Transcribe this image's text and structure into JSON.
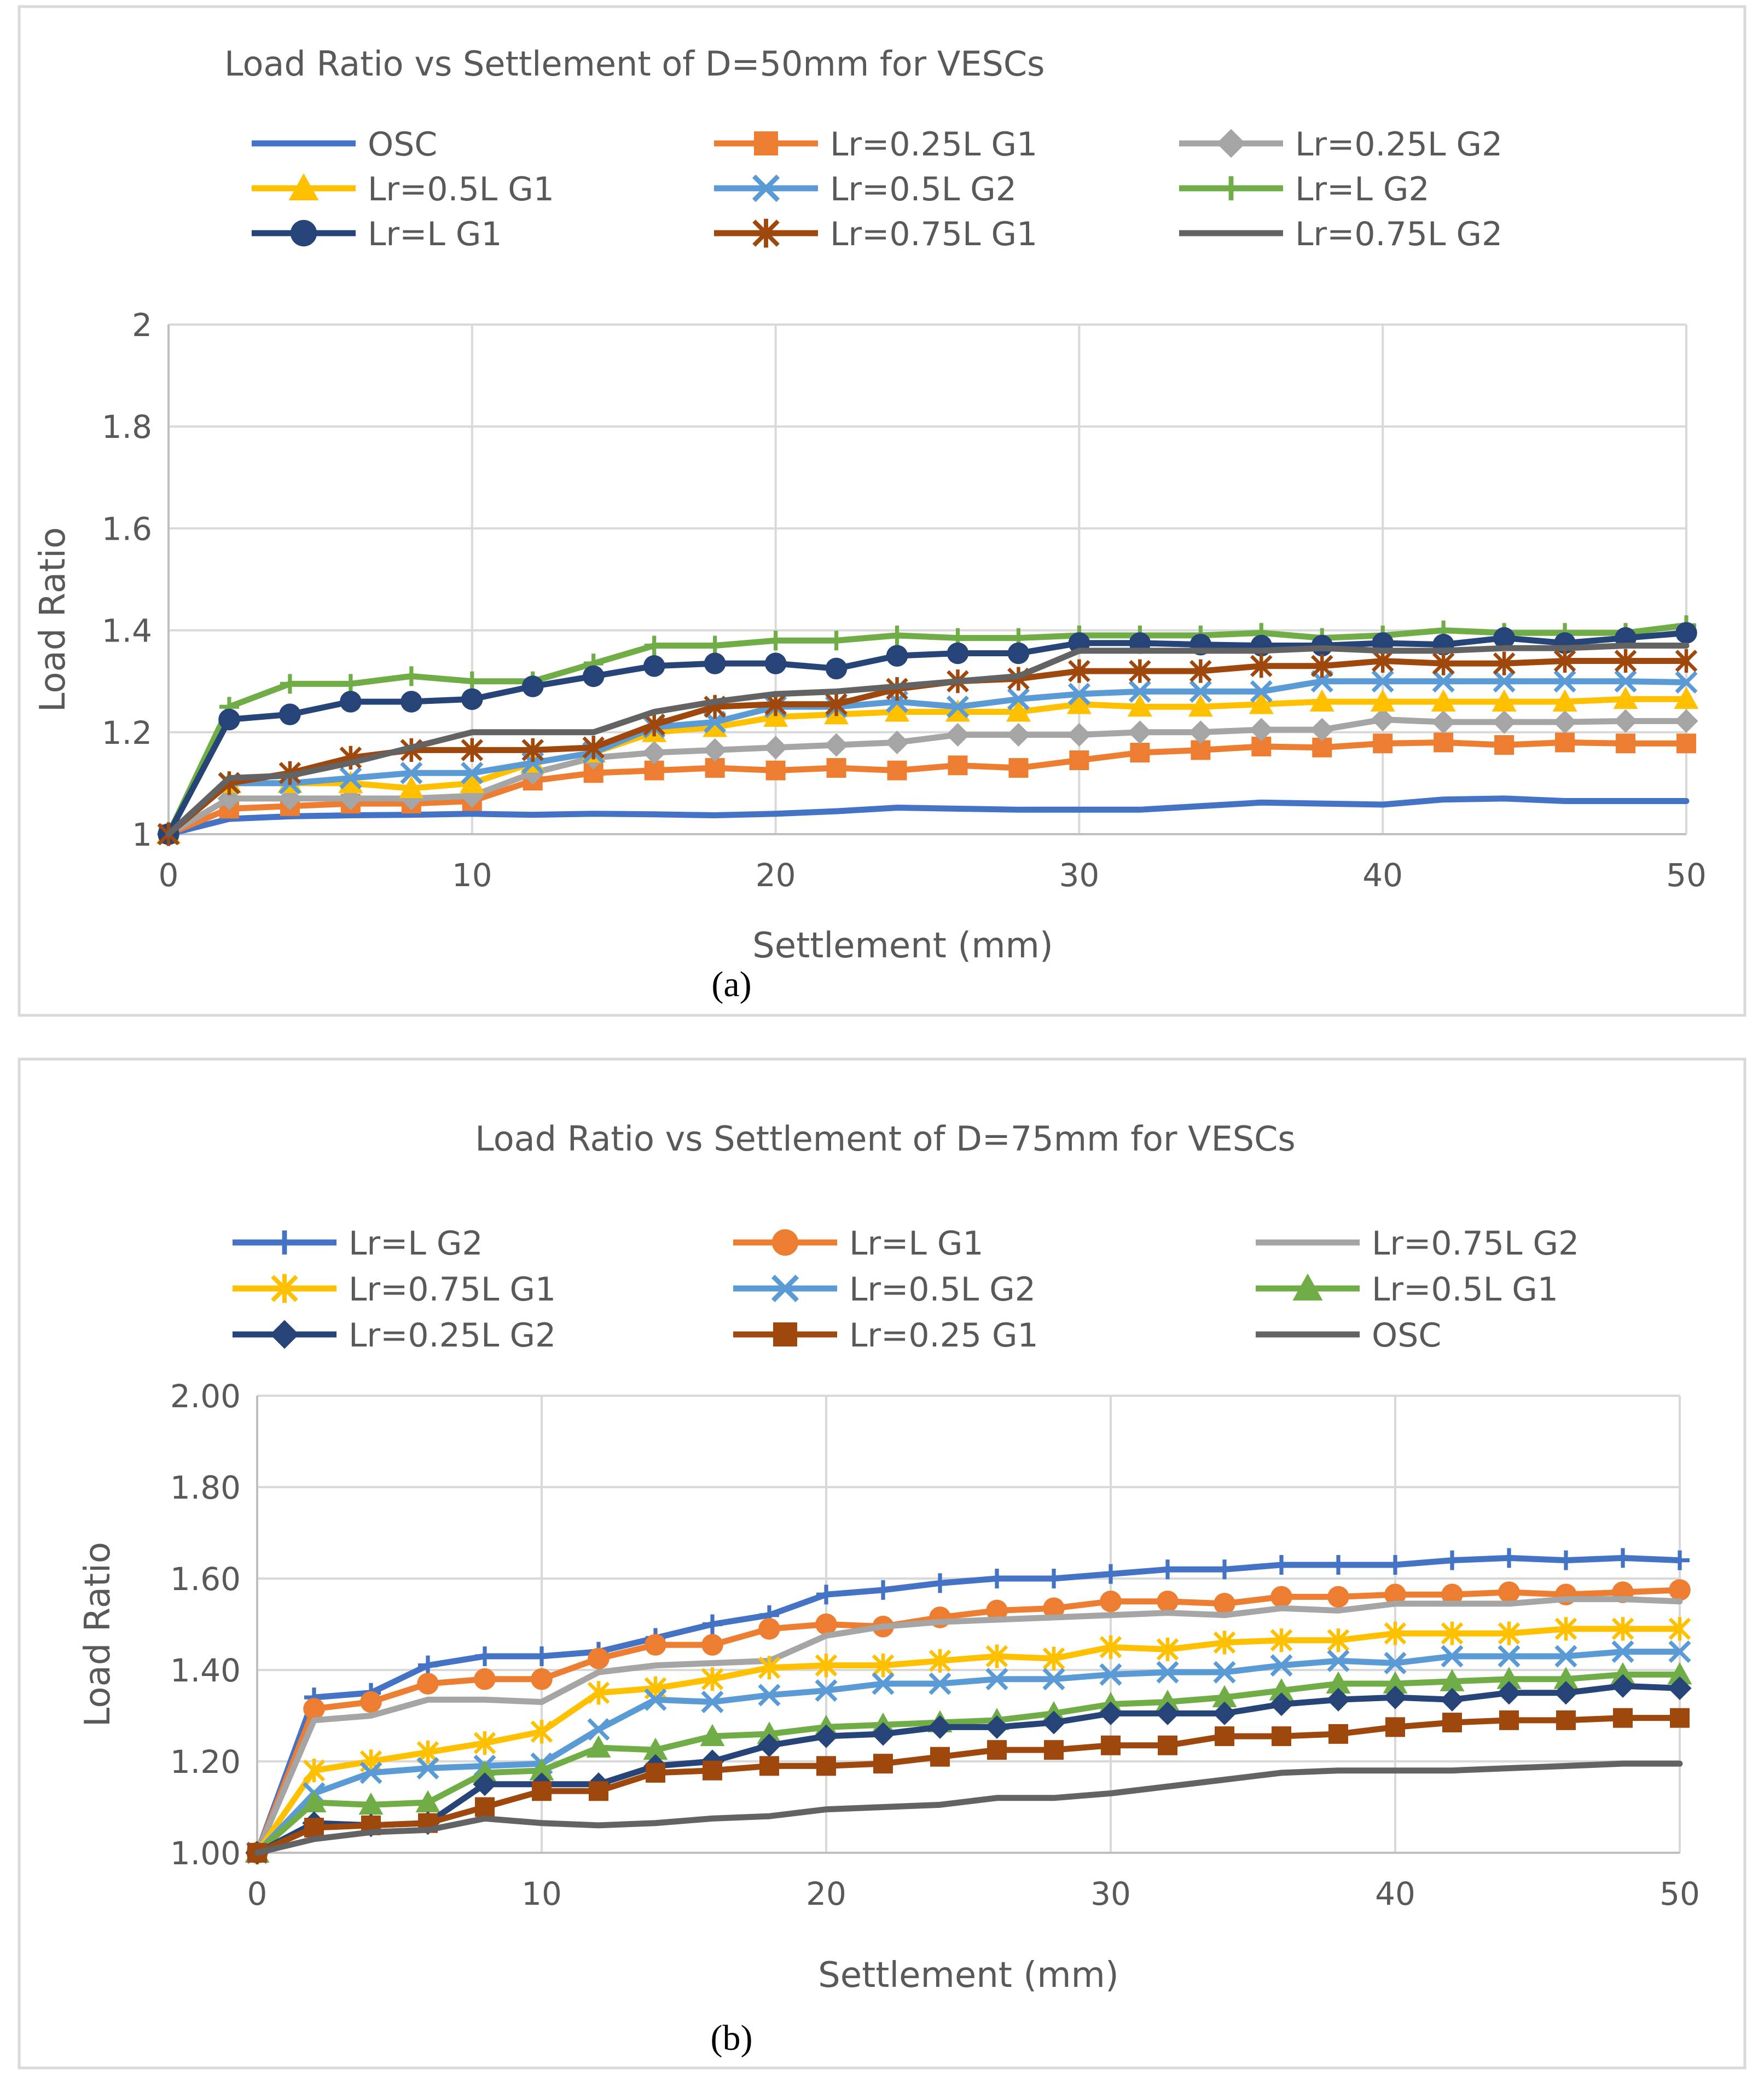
{
  "chart_data": [
    {
      "type": "line",
      "title": "Load Ratio vs Settlement of D=50mm for VESCs",
      "xlabel": "Settlement (mm)",
      "ylabel": "Load Ratio",
      "xlim": [
        0,
        50
      ],
      "ylim": [
        1,
        2
      ],
      "xticks": [
        0,
        10,
        20,
        30,
        40,
        50
      ],
      "yticks": [
        1,
        1.2,
        1.4,
        1.6,
        1.8,
        2
      ],
      "ytick_labels": [
        "1",
        "1.2",
        "1.4",
        "1.6",
        "1.8",
        "2"
      ],
      "grid": true,
      "legend_position": "top",
      "caption": "(a)",
      "x": [
        0,
        2,
        4,
        6,
        8,
        10,
        12,
        14,
        16,
        18,
        20,
        22,
        24,
        26,
        28,
        30,
        32,
        34,
        36,
        38,
        40,
        42,
        44,
        46,
        48,
        50
      ],
      "series": [
        {
          "name": "OSC",
          "color": "#4472C4",
          "marker": "none",
          "values": [
            1.0,
            1.03,
            1.035,
            1.037,
            1.038,
            1.04,
            1.038,
            1.04,
            1.039,
            1.037,
            1.04,
            1.045,
            1.052,
            1.05,
            1.048,
            1.048,
            1.048,
            1.055,
            1.062,
            1.06,
            1.058,
            1.068,
            1.07,
            1.065,
            1.065,
            1.065
          ]
        },
        {
          "name": "Lr=0.25L G1",
          "color": "#ED7D31",
          "marker": "square",
          "values": [
            1.0,
            1.05,
            1.055,
            1.06,
            1.06,
            1.065,
            1.105,
            1.12,
            1.125,
            1.13,
            1.125,
            1.13,
            1.125,
            1.135,
            1.13,
            1.145,
            1.16,
            1.165,
            1.172,
            1.17,
            1.178,
            1.18,
            1.175,
            1.18,
            1.178,
            1.178
          ]
        },
        {
          "name": "Lr=0.25L G2",
          "color": "#A5A5A5",
          "marker": "diamond",
          "values": [
            1.0,
            1.07,
            1.07,
            1.07,
            1.07,
            1.075,
            1.12,
            1.15,
            1.16,
            1.165,
            1.17,
            1.175,
            1.18,
            1.195,
            1.195,
            1.195,
            1.2,
            1.2,
            1.205,
            1.205,
            1.225,
            1.22,
            1.22,
            1.22,
            1.222,
            1.222
          ]
        },
        {
          "name": "Lr=0.5L G1",
          "color": "#FFC000",
          "marker": "triangle",
          "values": [
            1.0,
            1.1,
            1.1,
            1.1,
            1.09,
            1.1,
            1.14,
            1.16,
            1.2,
            1.21,
            1.23,
            1.235,
            1.24,
            1.24,
            1.24,
            1.255,
            1.25,
            1.25,
            1.255,
            1.26,
            1.26,
            1.26,
            1.26,
            1.26,
            1.265,
            1.265
          ]
        },
        {
          "name": "Lr=0.5L G2",
          "color": "#5B9BD5",
          "marker": "x",
          "values": [
            1.0,
            1.1,
            1.1,
            1.11,
            1.12,
            1.12,
            1.14,
            1.16,
            1.21,
            1.22,
            1.25,
            1.25,
            1.26,
            1.25,
            1.265,
            1.275,
            1.28,
            1.28,
            1.28,
            1.3,
            1.3,
            1.3,
            1.3,
            1.3,
            1.3,
            1.298
          ]
        },
        {
          "name": "Lr=L G2",
          "color": "#70AD47",
          "marker": "plus",
          "values": [
            1.0,
            1.25,
            1.295,
            1.295,
            1.31,
            1.3,
            1.3,
            1.335,
            1.37,
            1.37,
            1.38,
            1.38,
            1.39,
            1.385,
            1.385,
            1.39,
            1.39,
            1.39,
            1.395,
            1.385,
            1.39,
            1.4,
            1.395,
            1.395,
            1.395,
            1.41
          ]
        },
        {
          "name": "Lr=L G1",
          "color": "#264478",
          "marker": "circle",
          "values": [
            1.0,
            1.225,
            1.235,
            1.26,
            1.26,
            1.265,
            1.29,
            1.31,
            1.33,
            1.335,
            1.335,
            1.325,
            1.35,
            1.355,
            1.355,
            1.375,
            1.375,
            1.372,
            1.37,
            1.37,
            1.375,
            1.372,
            1.385,
            1.375,
            1.385,
            1.395
          ]
        },
        {
          "name": "Lr=0.75L G1",
          "color": "#9E480E",
          "marker": "star",
          "values": [
            1.0,
            1.1,
            1.12,
            1.15,
            1.165,
            1.165,
            1.165,
            1.17,
            1.215,
            1.25,
            1.255,
            1.255,
            1.285,
            1.3,
            1.305,
            1.32,
            1.32,
            1.32,
            1.33,
            1.33,
            1.34,
            1.335,
            1.335,
            1.34,
            1.34,
            1.34
          ]
        },
        {
          "name": "Lr=0.75L G2",
          "color": "#636363",
          "marker": "none",
          "values": [
            1.0,
            1.11,
            1.115,
            1.14,
            1.17,
            1.2,
            1.2,
            1.2,
            1.24,
            1.26,
            1.275,
            1.28,
            1.29,
            1.3,
            1.31,
            1.36,
            1.36,
            1.36,
            1.36,
            1.365,
            1.36,
            1.36,
            1.365,
            1.365,
            1.37,
            1.37
          ]
        }
      ]
    },
    {
      "type": "line",
      "title": "Load Ratio vs Settlement of D=75mm for VESCs",
      "xlabel": "Settlement (mm)",
      "ylabel": "Load Ratio",
      "xlim": [
        0,
        50
      ],
      "ylim": [
        1,
        2
      ],
      "xticks": [
        0,
        10,
        20,
        30,
        40,
        50
      ],
      "yticks": [
        1,
        1.2,
        1.4,
        1.6,
        1.8,
        2
      ],
      "ytick_labels": [
        "1.00",
        "1.20",
        "1.40",
        "1.60",
        "1.80",
        "2.00"
      ],
      "grid": true,
      "legend_position": "top",
      "caption": "(b)",
      "x": [
        0,
        2,
        4,
        6,
        8,
        10,
        12,
        14,
        16,
        18,
        20,
        22,
        24,
        26,
        28,
        30,
        32,
        34,
        36,
        38,
        40,
        42,
        44,
        46,
        48,
        50
      ],
      "series": [
        {
          "name": "Lr=L G2",
          "color": "#4472C4",
          "marker": "plus",
          "values": [
            1.0,
            1.34,
            1.35,
            1.41,
            1.43,
            1.43,
            1.44,
            1.47,
            1.5,
            1.52,
            1.565,
            1.575,
            1.59,
            1.6,
            1.6,
            1.61,
            1.62,
            1.62,
            1.63,
            1.63,
            1.63,
            1.64,
            1.645,
            1.64,
            1.645,
            1.64
          ]
        },
        {
          "name": "Lr=L G1",
          "color": "#ED7D31",
          "marker": "circle",
          "values": [
            1.0,
            1.315,
            1.33,
            1.37,
            1.38,
            1.38,
            1.425,
            1.455,
            1.455,
            1.49,
            1.5,
            1.495,
            1.515,
            1.53,
            1.535,
            1.55,
            1.55,
            1.545,
            1.56,
            1.56,
            1.565,
            1.565,
            1.57,
            1.565,
            1.57,
            1.575
          ]
        },
        {
          "name": "Lr=0.75L G2",
          "color": "#A5A5A5",
          "marker": "none",
          "values": [
            1.0,
            1.29,
            1.3,
            1.335,
            1.335,
            1.33,
            1.395,
            1.41,
            1.415,
            1.42,
            1.475,
            1.495,
            1.505,
            1.51,
            1.515,
            1.52,
            1.525,
            1.52,
            1.535,
            1.53,
            1.545,
            1.545,
            1.545,
            1.555,
            1.555,
            1.55
          ]
        },
        {
          "name": "Lr=0.75L G1",
          "color": "#FFC000",
          "marker": "star",
          "values": [
            1.0,
            1.18,
            1.2,
            1.22,
            1.24,
            1.265,
            1.35,
            1.36,
            1.38,
            1.405,
            1.41,
            1.41,
            1.42,
            1.43,
            1.425,
            1.45,
            1.445,
            1.46,
            1.465,
            1.465,
            1.48,
            1.48,
            1.48,
            1.49,
            1.49,
            1.49
          ]
        },
        {
          "name": "Lr=0.5L G2",
          "color": "#5B9BD5",
          "marker": "x",
          "values": [
            1.0,
            1.13,
            1.175,
            1.185,
            1.19,
            1.195,
            1.27,
            1.335,
            1.33,
            1.345,
            1.355,
            1.37,
            1.37,
            1.38,
            1.38,
            1.39,
            1.395,
            1.395,
            1.41,
            1.42,
            1.415,
            1.43,
            1.43,
            1.43,
            1.44,
            1.44
          ]
        },
        {
          "name": "Lr=0.5L G1",
          "color": "#70AD47",
          "marker": "triangle",
          "values": [
            1.0,
            1.11,
            1.105,
            1.11,
            1.175,
            1.18,
            1.23,
            1.225,
            1.255,
            1.26,
            1.275,
            1.28,
            1.285,
            1.29,
            1.305,
            1.325,
            1.33,
            1.34,
            1.355,
            1.37,
            1.37,
            1.375,
            1.38,
            1.38,
            1.39,
            1.39
          ]
        },
        {
          "name": "Lr=0.25L G2",
          "color": "#264478",
          "marker": "diamond",
          "values": [
            1.0,
            1.065,
            1.06,
            1.065,
            1.15,
            1.15,
            1.15,
            1.19,
            1.2,
            1.235,
            1.255,
            1.26,
            1.275,
            1.275,
            1.285,
            1.305,
            1.305,
            1.305,
            1.325,
            1.335,
            1.34,
            1.335,
            1.35,
            1.35,
            1.365,
            1.36
          ]
        },
        {
          "name": "Lr=0.25 G1",
          "color": "#9E480E",
          "marker": "square",
          "values": [
            1.0,
            1.055,
            1.06,
            1.065,
            1.1,
            1.135,
            1.135,
            1.175,
            1.18,
            1.19,
            1.19,
            1.195,
            1.21,
            1.225,
            1.225,
            1.235,
            1.235,
            1.255,
            1.255,
            1.26,
            1.275,
            1.285,
            1.29,
            1.29,
            1.295,
            1.295
          ]
        },
        {
          "name": "OSC",
          "color": "#636363",
          "marker": "none",
          "values": [
            1.0,
            1.03,
            1.045,
            1.05,
            1.075,
            1.065,
            1.06,
            1.065,
            1.075,
            1.08,
            1.095,
            1.1,
            1.105,
            1.12,
            1.12,
            1.13,
            1.145,
            1.16,
            1.175,
            1.18,
            1.18,
            1.18,
            1.185,
            1.19,
            1.195,
            1.195
          ]
        }
      ]
    }
  ]
}
